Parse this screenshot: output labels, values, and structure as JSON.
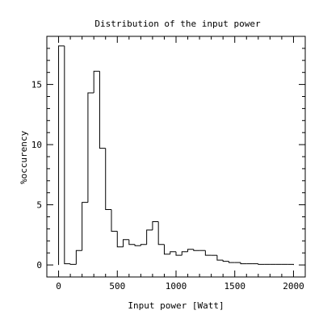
{
  "chart_data": {
    "type": "bar",
    "style": "step-histogram",
    "title": "Distribution of the input power",
    "xlabel": "Input power [Watt]",
    "ylabel": "%occurency",
    "xlim": [
      -100,
      2100
    ],
    "ylim": [
      -1,
      19
    ],
    "xticks": [
      0,
      500,
      1000,
      1500,
      2000
    ],
    "xtick_labels": [
      "0",
      "500",
      "1000",
      "1500",
      "2000"
    ],
    "yticks": [
      0,
      5,
      10,
      15
    ],
    "ytick_labels": [
      "0",
      "5",
      "10",
      "15"
    ],
    "grid": false,
    "bin_width": 50,
    "bin_edges": [
      0,
      50,
      100,
      150,
      200,
      250,
      300,
      350,
      400,
      450,
      500,
      550,
      600,
      650,
      700,
      750,
      800,
      850,
      900,
      950,
      1000,
      1050,
      1100,
      1150,
      1200,
      1250,
      1300,
      1350,
      1400,
      1450,
      1500,
      1550,
      1600,
      1650,
      1700,
      1750,
      1800,
      1850,
      1900,
      1950,
      2000
    ],
    "values": [
      18.2,
      0.1,
      0.05,
      1.2,
      5.2,
      14.3,
      16.1,
      9.7,
      4.6,
      2.8,
      1.5,
      2.1,
      1.7,
      1.6,
      1.7,
      2.9,
      3.6,
      1.7,
      0.9,
      1.1,
      0.8,
      1.1,
      1.3,
      1.2,
      1.2,
      0.8,
      0.8,
      0.4,
      0.3,
      0.2,
      0.2,
      0.1,
      0.1,
      0.1,
      0.05,
      0.05,
      0.05,
      0.05,
      0.05,
      0.05
    ]
  }
}
